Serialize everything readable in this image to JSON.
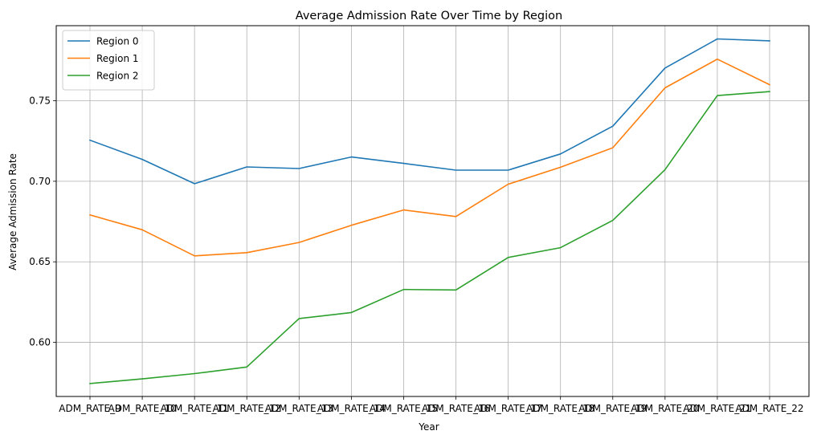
{
  "chart_data": {
    "type": "line",
    "title": "Average Admission Rate Over Time by Region",
    "xlabel": "Year",
    "ylabel": "Average Admission Rate",
    "categories": [
      "ADM_RATE_9",
      "ADM_RATE_10",
      "ADM_RATE_11",
      "ADM_RATE_12",
      "ADM_RATE_13",
      "ADM_RATE_14",
      "ADM_RATE_15",
      "ADM_RATE_16",
      "ADM_RATE_17",
      "ADM_RATE_18",
      "ADM_RATE_19",
      "ADM_RATE_20",
      "ADM_RATE_21",
      "ADM_RATE_22"
    ],
    "ylim": [
      0.5664,
      0.7966
    ],
    "yticks": [
      "0.60",
      "0.65",
      "0.70",
      "0.75"
    ],
    "yticks_values": [
      0.6,
      0.65,
      0.7,
      0.75
    ],
    "grid": true,
    "legend_position": "top-left",
    "series": [
      {
        "name": "Region 0",
        "color": "#1f77b4",
        "values": [
          0.7255,
          0.7136,
          0.6985,
          0.7089,
          0.7079,
          0.7151,
          0.7111,
          0.7069,
          0.7069,
          0.717,
          0.7342,
          0.7703,
          0.7884,
          0.7872
        ]
      },
      {
        "name": "Region 1",
        "color": "#ff7f0e",
        "values": [
          0.6791,
          0.6699,
          0.6537,
          0.6557,
          0.662,
          0.6727,
          0.6822,
          0.6781,
          0.6982,
          0.7087,
          0.7208,
          0.758,
          0.7758,
          0.76
        ]
      },
      {
        "name": "Region 2",
        "color": "#2ca02c",
        "values": [
          0.5744,
          0.5773,
          0.5806,
          0.5847,
          0.6148,
          0.6185,
          0.6328,
          0.6325,
          0.6527,
          0.6588,
          0.6757,
          0.7072,
          0.7532,
          0.7557
        ]
      }
    ]
  }
}
